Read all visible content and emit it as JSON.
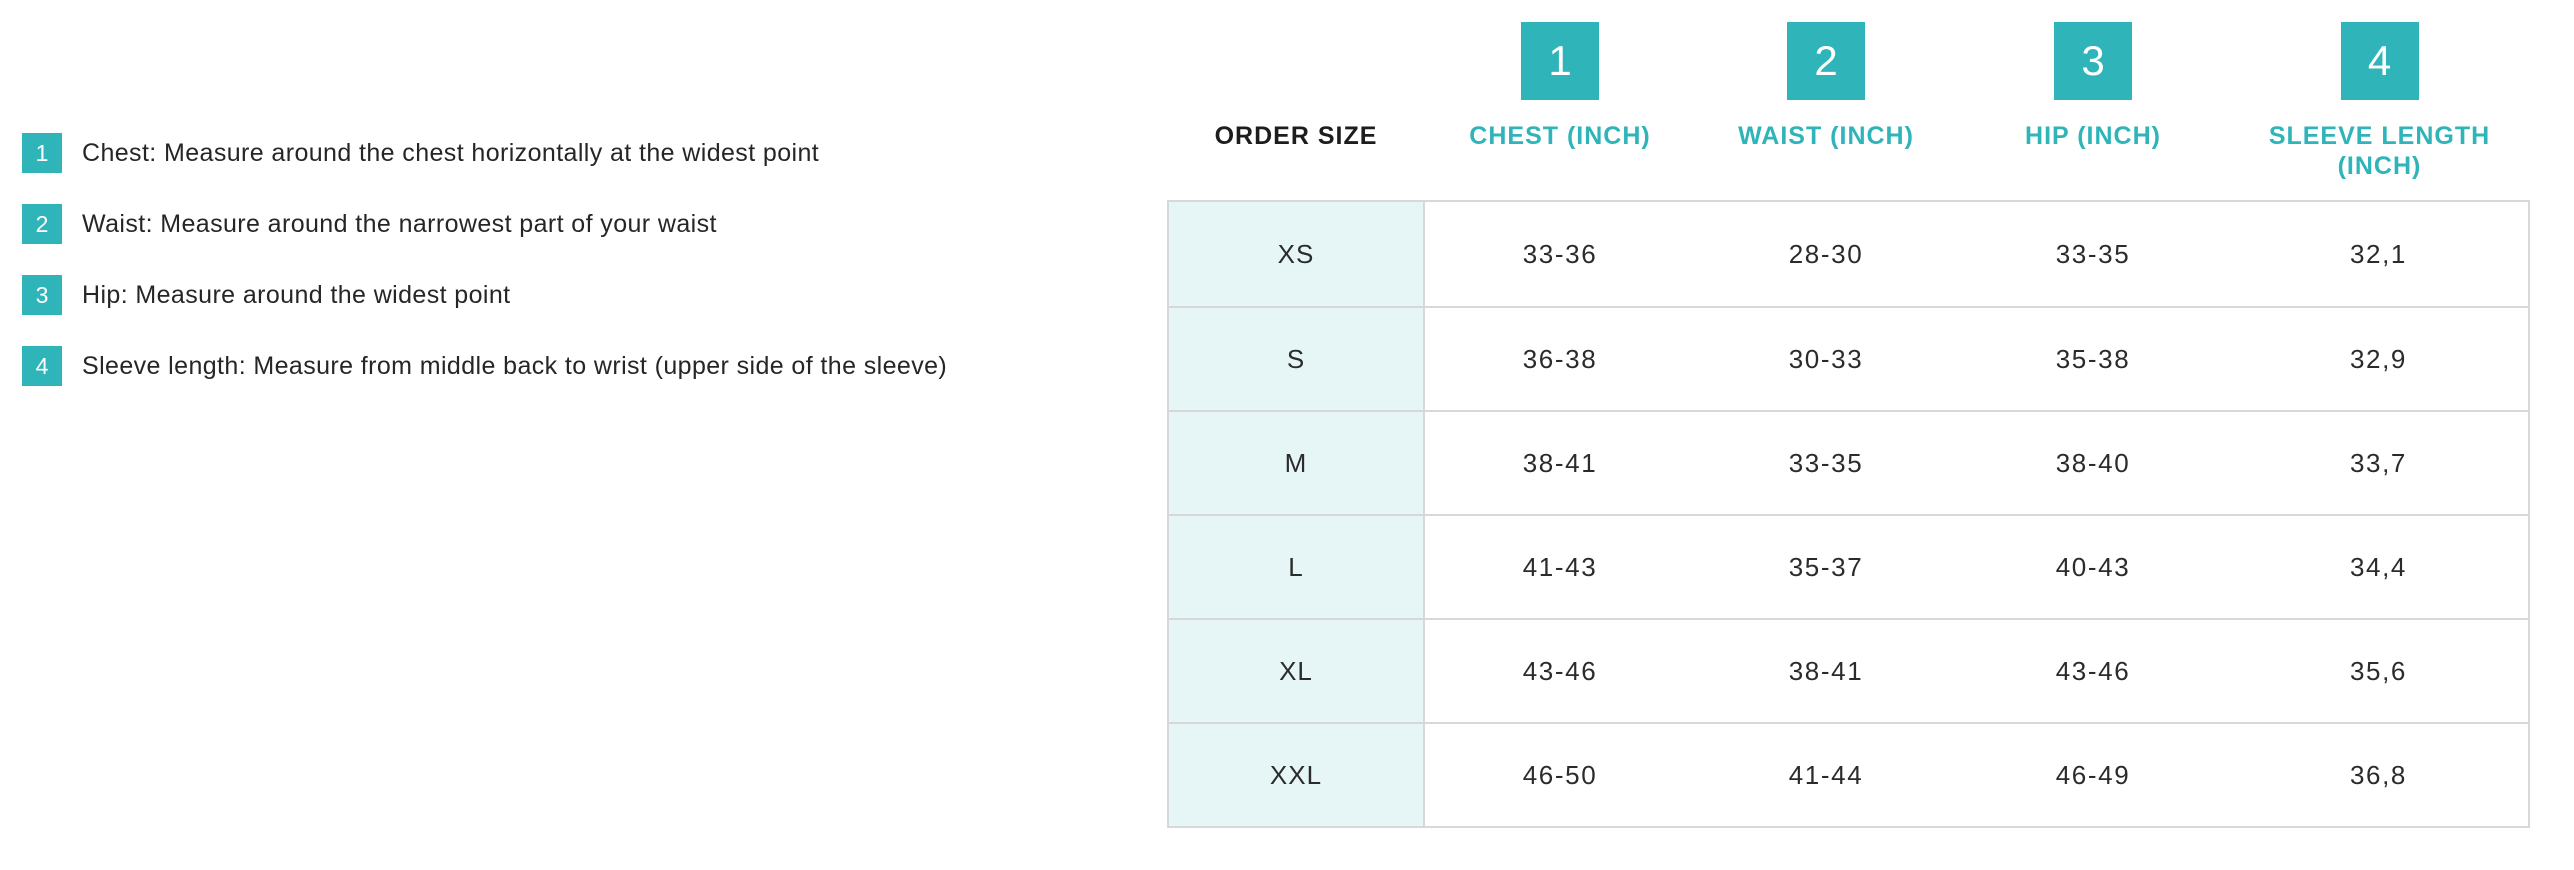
{
  "colors": {
    "accent_teal": "#2eb4b9",
    "size_column_bg": "#e6f5f5",
    "table_border": "#d7d9d9",
    "text_dark": "#262626"
  },
  "instructions": {
    "items": [
      {
        "num": "1",
        "text": "Chest: Measure around the chest horizontally at the widest point"
      },
      {
        "num": "2",
        "text": "Waist: Measure around the narrowest part of your waist"
      },
      {
        "num": "3",
        "text": "Hip: Measure around the widest point"
      },
      {
        "num": "4",
        "text": "Sleeve length: Measure from middle back to wrist  (upper side of the sleeve)"
      }
    ]
  },
  "size_chart": {
    "order_size_label": "ORDER SIZE",
    "columns": [
      {
        "num": "1",
        "label": "CHEST (INCH)"
      },
      {
        "num": "2",
        "label": "WAIST (INCH)"
      },
      {
        "num": "3",
        "label": "HIP (INCH)"
      },
      {
        "num": "4",
        "label": "SLEEVE LENGTH (INCH)"
      }
    ],
    "rows": [
      {
        "size": "XS",
        "chest": "33-36",
        "waist": "28-30",
        "hip": "33-35",
        "sleeve": "32,1"
      },
      {
        "size": "S",
        "chest": "36-38",
        "waist": "30-33",
        "hip": "35-38",
        "sleeve": "32,9"
      },
      {
        "size": "M",
        "chest": "38-41",
        "waist": "33-35",
        "hip": "38-40",
        "sleeve": "33,7"
      },
      {
        "size": "L",
        "chest": "41-43",
        "waist": "35-37",
        "hip": "40-43",
        "sleeve": "34,4"
      },
      {
        "size": "XL",
        "chest": "43-46",
        "waist": "38-41",
        "hip": "43-46",
        "sleeve": "35,6"
      },
      {
        "size": "XXL",
        "chest": "46-50",
        "waist": "41-44",
        "hip": "46-49",
        "sleeve": "36,8"
      }
    ]
  }
}
